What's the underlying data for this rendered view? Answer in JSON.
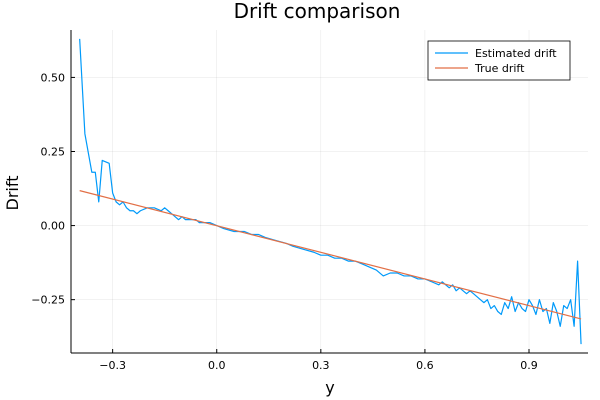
{
  "chart_data": {
    "type": "line",
    "title": "Drift comparison",
    "xlabel": "y",
    "ylabel": "Drift",
    "xlim": [
      -0.42,
      1.07
    ],
    "ylim": [
      -0.43,
      0.66
    ],
    "xticks": [
      {
        "value": -0.3,
        "label": "−0.3"
      },
      {
        "value": 0.0,
        "label": "0.0"
      },
      {
        "value": 0.3,
        "label": "0.3"
      },
      {
        "value": 0.6,
        "label": "0.6"
      },
      {
        "value": 0.9,
        "label": "0.9"
      }
    ],
    "yticks": [
      {
        "value": 0.5,
        "label": "0.50"
      },
      {
        "value": 0.25,
        "label": "0.25"
      },
      {
        "value": 0.0,
        "label": "0.00"
      },
      {
        "value": -0.25,
        "label": "−0.25"
      }
    ],
    "grid": true,
    "legend_position": "top-right",
    "series": [
      {
        "name": "Estimated drift",
        "color": "#009AFA",
        "x": [
          -0.395,
          -0.38,
          -0.36,
          -0.35,
          -0.34,
          -0.33,
          -0.31,
          -0.3,
          -0.29,
          -0.28,
          -0.27,
          -0.26,
          -0.25,
          -0.24,
          -0.23,
          -0.22,
          -0.2,
          -0.18,
          -0.16,
          -0.15,
          -0.14,
          -0.13,
          -0.12,
          -0.11,
          -0.1,
          -0.09,
          -0.08,
          -0.07,
          -0.06,
          -0.05,
          -0.04,
          -0.02,
          0.0,
          0.02,
          0.05,
          0.08,
          0.1,
          0.12,
          0.14,
          0.17,
          0.2,
          0.22,
          0.25,
          0.28,
          0.3,
          0.32,
          0.34,
          0.36,
          0.38,
          0.4,
          0.42,
          0.44,
          0.46,
          0.48,
          0.5,
          0.52,
          0.54,
          0.56,
          0.58,
          0.6,
          0.62,
          0.64,
          0.65,
          0.67,
          0.68,
          0.69,
          0.7,
          0.71,
          0.72,
          0.73,
          0.74,
          0.75,
          0.76,
          0.77,
          0.78,
          0.79,
          0.8,
          0.81,
          0.82,
          0.83,
          0.84,
          0.85,
          0.86,
          0.87,
          0.88,
          0.89,
          0.9,
          0.91,
          0.92,
          0.93,
          0.94,
          0.95,
          0.96,
          0.97,
          0.98,
          0.99,
          1.0,
          1.01,
          1.02,
          1.03,
          1.04,
          1.05
        ],
        "y": [
          0.63,
          0.31,
          0.18,
          0.18,
          0.08,
          0.22,
          0.21,
          0.11,
          0.08,
          0.07,
          0.08,
          0.06,
          0.05,
          0.05,
          0.04,
          0.05,
          0.06,
          0.06,
          0.05,
          0.06,
          0.05,
          0.04,
          0.03,
          0.02,
          0.03,
          0.02,
          0.02,
          0.02,
          0.02,
          0.01,
          0.01,
          0.01,
          0.0,
          -0.01,
          -0.02,
          -0.02,
          -0.03,
          -0.03,
          -0.04,
          -0.05,
          -0.06,
          -0.07,
          -0.08,
          -0.09,
          -0.1,
          -0.1,
          -0.11,
          -0.11,
          -0.12,
          -0.12,
          -0.13,
          -0.14,
          -0.15,
          -0.17,
          -0.16,
          -0.16,
          -0.17,
          -0.17,
          -0.18,
          -0.18,
          -0.19,
          -0.2,
          -0.19,
          -0.21,
          -0.2,
          -0.22,
          -0.21,
          -0.22,
          -0.23,
          -0.22,
          -0.23,
          -0.24,
          -0.25,
          -0.26,
          -0.25,
          -0.28,
          -0.27,
          -0.29,
          -0.3,
          -0.26,
          -0.28,
          -0.24,
          -0.29,
          -0.26,
          -0.28,
          -0.29,
          -0.25,
          -0.27,
          -0.3,
          -0.25,
          -0.29,
          -0.28,
          -0.33,
          -0.26,
          -0.29,
          -0.34,
          -0.27,
          -0.28,
          -0.25,
          -0.34,
          -0.12,
          -0.4
        ]
      },
      {
        "name": "True drift",
        "color": "#E26F46",
        "x": [
          -0.395,
          1.05
        ],
        "y": [
          0.118,
          -0.315
        ]
      }
    ]
  }
}
